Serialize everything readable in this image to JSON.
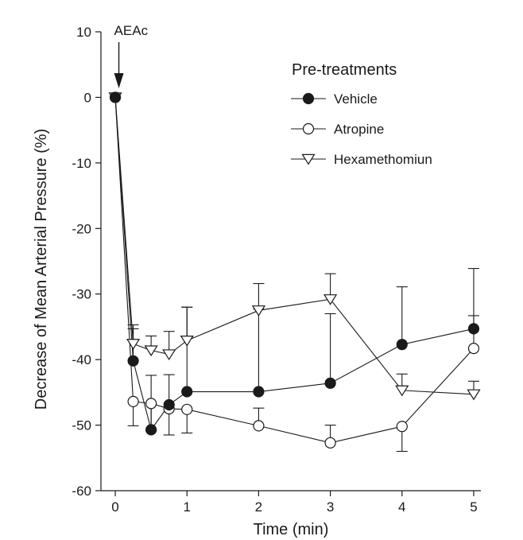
{
  "chart_data": {
    "type": "line",
    "title": "",
    "xlabel": "Time (min)",
    "ylabel": "Decrease of Mean Arterial Pressure (%)",
    "xlim": [
      -0.2,
      5.1
    ],
    "ylim": [
      -60,
      10
    ],
    "x_ticks": [
      0,
      1,
      2,
      3,
      4,
      5
    ],
    "y_ticks": [
      10,
      0,
      -10,
      -20,
      -30,
      -40,
      -50,
      -60
    ],
    "legend": {
      "title": "Pre-treatments",
      "placement": "top-right"
    },
    "annotation": {
      "text": "AEAc",
      "x": 0.05
    },
    "series": [
      {
        "name": "Vehicle",
        "marker": "filled-circle",
        "x": [
          0,
          0.25,
          0.5,
          0.75,
          1,
          2,
          3,
          4,
          5
        ],
        "y": [
          0,
          -40.2,
          -50.7,
          -46.9,
          -44.9,
          -44.9,
          -43.6,
          -37.7,
          -35.3
        ],
        "err": [
          0,
          5.5,
          8.3,
          4.6,
          12.9,
          12.6,
          10.6,
          8.8,
          9.2
        ],
        "err_dir": [
          0,
          1,
          1,
          1,
          1,
          1,
          1,
          1,
          1
        ]
      },
      {
        "name": "Atropine",
        "marker": "open-circle",
        "x": [
          0,
          0.25,
          0.5,
          0.75,
          1,
          2,
          3,
          4,
          5
        ],
        "y": [
          0,
          -46.4,
          -46.7,
          -47.5,
          -47.6,
          -50.1,
          -52.7,
          -50.2,
          -38.3
        ],
        "err": [
          0,
          3.7,
          4.2,
          4,
          3.6,
          2.7,
          2.7,
          3.8,
          5
        ],
        "err_dir": [
          0,
          -1,
          -1,
          -1,
          -1,
          1,
          1,
          -1,
          1
        ]
      },
      {
        "name": "Hexamethomiun",
        "marker": "open-triangle-down",
        "x": [
          0,
          0.25,
          0.5,
          0.75,
          1,
          2,
          3,
          4,
          5
        ],
        "y": [
          0,
          -37.6,
          -38.6,
          -39.2,
          -37.1,
          -32.5,
          -30.8,
          -44.7,
          -45.3
        ],
        "err": [
          0,
          2.3,
          2.2,
          3.5,
          5.1,
          4.1,
          3.9,
          2.5,
          2
        ],
        "err_dir": [
          0,
          1,
          1,
          1,
          1,
          1,
          1,
          1,
          1
        ]
      }
    ]
  }
}
